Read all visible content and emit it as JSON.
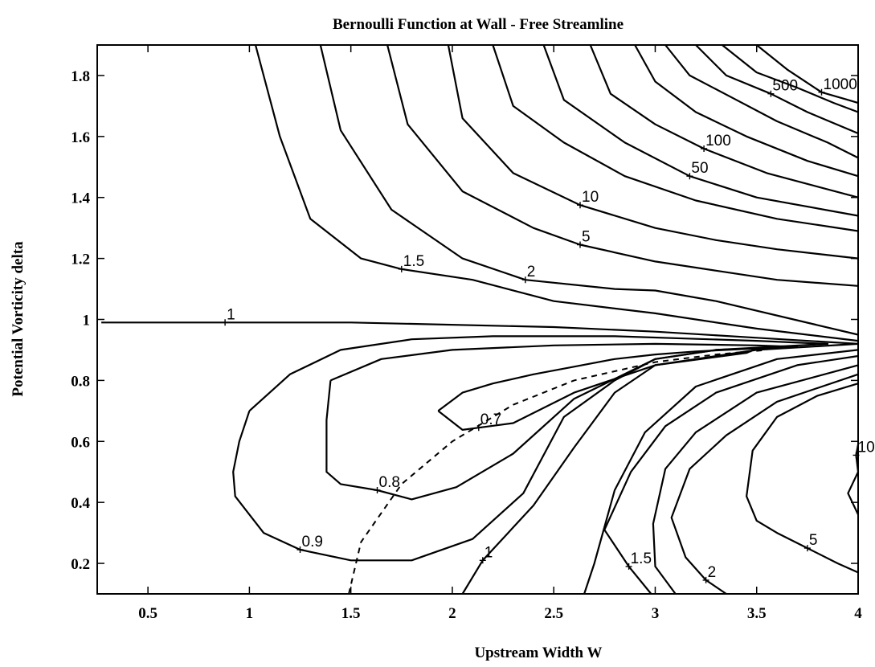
{
  "chart_data": {
    "type": "contour",
    "title": "Bernoulli Function at Wall - Free Streamline",
    "xlabel": "Upstream Width W",
    "ylabel": "Potential Vorticity delta",
    "xlim": [
      0.25,
      4.0
    ],
    "ylim": [
      0.1,
      1.9
    ],
    "xticks": [
      0.5,
      1,
      1.5,
      2,
      2.5,
      3,
      3.5,
      4
    ],
    "xtick_labels": [
      "0.5",
      "1",
      "1.5",
      "2",
      "2.5",
      "3",
      "3.5",
      "4"
    ],
    "yticks": [
      0.2,
      0.4,
      0.6,
      0.8,
      1.0,
      1.2,
      1.4,
      1.6,
      1.8
    ],
    "ytick_labels": [
      "0.2",
      "0.4",
      "0.6",
      "0.8",
      "1",
      "1.2",
      "1.4",
      "1.6",
      "1.8"
    ],
    "grid": false,
    "contour_labels": [
      {
        "text": "1",
        "x": 0.88,
        "y": 0.99
      },
      {
        "text": "1.5",
        "x": 1.75,
        "y": 1.165
      },
      {
        "text": "2",
        "x": 2.36,
        "y": 1.13
      },
      {
        "text": "5",
        "x": 2.63,
        "y": 1.245
      },
      {
        "text": "10",
        "x": 2.63,
        "y": 1.375
      },
      {
        "text": "50",
        "x": 3.17,
        "y": 1.47
      },
      {
        "text": "100",
        "x": 3.24,
        "y": 1.56
      },
      {
        "text": "500",
        "x": 3.57,
        "y": 1.74
      },
      {
        "text": "1000",
        "x": 3.82,
        "y": 1.745
      },
      {
        "text": "0.7",
        "x": 2.13,
        "y": 0.645
      },
      {
        "text": "0.8",
        "x": 1.63,
        "y": 0.44
      },
      {
        "text": "0.9",
        "x": 1.25,
        "y": 0.245
      },
      {
        "text": "1",
        "x": 2.15,
        "y": 0.21
      },
      {
        "text": "1.5",
        "x": 2.87,
        "y": 0.19
      },
      {
        "text": "2",
        "x": 3.25,
        "y": 0.145
      },
      {
        "text": "5",
        "x": 3.75,
        "y": 0.25
      },
      {
        "text": "10",
        "x": 3.99,
        "y": 0.555
      }
    ],
    "contours": [
      {
        "level": "1",
        "points": [
          [
            0.27,
            0.99
          ],
          [
            1.5,
            0.99
          ],
          [
            2.5,
            0.975
          ],
          [
            3.0,
            0.96
          ],
          [
            3.5,
            0.94
          ],
          [
            4.0,
            0.92
          ]
        ]
      },
      {
        "level": "1.5",
        "points": [
          [
            1.03,
            1.9
          ],
          [
            1.15,
            1.6
          ],
          [
            1.3,
            1.33
          ],
          [
            1.55,
            1.2
          ],
          [
            1.75,
            1.165
          ],
          [
            2.1,
            1.13
          ],
          [
            2.5,
            1.06
          ],
          [
            3.0,
            1.02
          ],
          [
            3.5,
            0.97
          ],
          [
            4.0,
            0.93
          ]
        ]
      },
      {
        "level": "2",
        "points": [
          [
            1.35,
            1.9
          ],
          [
            1.45,
            1.62
          ],
          [
            1.7,
            1.36
          ],
          [
            2.05,
            1.2
          ],
          [
            2.36,
            1.13
          ],
          [
            2.8,
            1.1
          ],
          [
            3.0,
            1.095
          ],
          [
            3.3,
            1.06
          ],
          [
            4.0,
            0.95
          ]
        ]
      },
      {
        "level": "5",
        "points": [
          [
            1.68,
            1.9
          ],
          [
            1.78,
            1.64
          ],
          [
            2.05,
            1.42
          ],
          [
            2.4,
            1.3
          ],
          [
            2.63,
            1.245
          ],
          [
            3.0,
            1.19
          ],
          [
            3.3,
            1.16
          ],
          [
            3.6,
            1.13
          ],
          [
            4.0,
            1.11
          ]
        ]
      },
      {
        "level": "10",
        "points": [
          [
            1.98,
            1.9
          ],
          [
            2.05,
            1.66
          ],
          [
            2.3,
            1.48
          ],
          [
            2.63,
            1.375
          ],
          [
            3.0,
            1.3
          ],
          [
            3.3,
            1.26
          ],
          [
            3.6,
            1.23
          ],
          [
            4.0,
            1.2
          ]
        ]
      },
      {
        "level": "",
        "points": [
          [
            2.2,
            1.9
          ],
          [
            2.3,
            1.7
          ],
          [
            2.55,
            1.58
          ],
          [
            2.85,
            1.47
          ],
          [
            3.2,
            1.39
          ],
          [
            3.6,
            1.33
          ],
          [
            4.0,
            1.29
          ]
        ]
      },
      {
        "level": "",
        "points": [
          [
            2.45,
            1.9
          ],
          [
            2.55,
            1.72
          ],
          [
            2.85,
            1.58
          ],
          [
            3.17,
            1.47
          ],
          [
            3.5,
            1.4
          ],
          [
            4.0,
            1.34
          ]
        ]
      },
      {
        "level": "50",
        "points": [
          [
            2.68,
            1.9
          ],
          [
            2.78,
            1.74
          ],
          [
            3.0,
            1.64
          ],
          [
            3.24,
            1.56
          ],
          [
            3.55,
            1.48
          ],
          [
            4.0,
            1.4
          ]
        ]
      },
      {
        "level": "100",
        "points": [
          [
            2.9,
            1.9
          ],
          [
            3.0,
            1.78
          ],
          [
            3.2,
            1.68
          ],
          [
            3.45,
            1.6
          ],
          [
            3.75,
            1.52
          ],
          [
            4.0,
            1.47
          ]
        ]
      },
      {
        "level": "",
        "points": [
          [
            3.05,
            1.9
          ],
          [
            3.17,
            1.8
          ],
          [
            3.4,
            1.72
          ],
          [
            3.6,
            1.65
          ],
          [
            3.85,
            1.58
          ],
          [
            4.0,
            1.53
          ]
        ]
      },
      {
        "level": "500",
        "points": [
          [
            3.2,
            1.9
          ],
          [
            3.35,
            1.8
          ],
          [
            3.57,
            1.74
          ],
          [
            3.75,
            1.68
          ],
          [
            4.0,
            1.61
          ]
        ]
      },
      {
        "level": "",
        "points": [
          [
            3.33,
            1.9
          ],
          [
            3.5,
            1.81
          ],
          [
            3.7,
            1.76
          ],
          [
            3.88,
            1.71
          ],
          [
            4.0,
            1.68
          ]
        ]
      },
      {
        "level": "1000",
        "points": [
          [
            3.5,
            1.9
          ],
          [
            3.65,
            1.82
          ],
          [
            3.82,
            1.745
          ],
          [
            3.95,
            1.72
          ],
          [
            4.0,
            1.71
          ]
        ]
      },
      {
        "level": "0.7",
        "points": [
          [
            1.93,
            0.7
          ],
          [
            2.05,
            0.76
          ],
          [
            2.2,
            0.79
          ],
          [
            2.4,
            0.82
          ],
          [
            2.6,
            0.845
          ],
          [
            2.8,
            0.87
          ],
          [
            3.0,
            0.885
          ],
          [
            3.2,
            0.895
          ],
          [
            3.5,
            0.905
          ],
          [
            3.45,
            0.89
          ],
          [
            3.0,
            0.85
          ],
          [
            2.6,
            0.76
          ],
          [
            2.3,
            0.66
          ],
          [
            2.13,
            0.645
          ],
          [
            2.05,
            0.638
          ],
          [
            1.93,
            0.7
          ]
        ]
      },
      {
        "level": "0.8",
        "points": [
          [
            1.4,
            0.8
          ],
          [
            1.65,
            0.87
          ],
          [
            2.0,
            0.9
          ],
          [
            2.5,
            0.915
          ],
          [
            3.0,
            0.92
          ],
          [
            3.5,
            0.915
          ],
          [
            3.7,
            0.91
          ],
          [
            3.3,
            0.9
          ],
          [
            3.0,
            0.87
          ],
          [
            2.6,
            0.74
          ],
          [
            2.3,
            0.56
          ],
          [
            2.02,
            0.45
          ],
          [
            1.8,
            0.41
          ],
          [
            1.63,
            0.44
          ],
          [
            1.45,
            0.46
          ],
          [
            1.38,
            0.5
          ],
          [
            1.38,
            0.67
          ],
          [
            1.4,
            0.8
          ]
        ]
      },
      {
        "level": "0.9",
        "points": [
          [
            1.0,
            0.7
          ],
          [
            1.2,
            0.82
          ],
          [
            1.45,
            0.9
          ],
          [
            1.8,
            0.935
          ],
          [
            2.2,
            0.945
          ],
          [
            2.8,
            0.945
          ],
          [
            3.5,
            0.93
          ],
          [
            3.85,
            0.92
          ],
          [
            3.3,
            0.9
          ],
          [
            3.0,
            0.87
          ],
          [
            2.8,
            0.8
          ],
          [
            2.55,
            0.68
          ],
          [
            2.35,
            0.43
          ],
          [
            2.1,
            0.28
          ],
          [
            1.8,
            0.21
          ],
          [
            1.5,
            0.21
          ],
          [
            1.25,
            0.245
          ],
          [
            1.07,
            0.3
          ],
          [
            0.93,
            0.42
          ],
          [
            0.92,
            0.5
          ],
          [
            0.95,
            0.6
          ],
          [
            1.0,
            0.7
          ]
        ]
      },
      {
        "level": "1",
        "points": [
          [
            2.05,
            0.1
          ],
          [
            2.15,
            0.21
          ],
          [
            2.4,
            0.39
          ],
          [
            2.6,
            0.58
          ],
          [
            2.8,
            0.76
          ],
          [
            3.0,
            0.85
          ],
          [
            3.5,
            0.9
          ],
          [
            4.0,
            0.92
          ]
        ]
      },
      {
        "level": "",
        "points": [
          [
            2.65,
            0.1
          ],
          [
            2.7,
            0.2
          ],
          [
            2.8,
            0.44
          ],
          [
            2.95,
            0.63
          ],
          [
            3.2,
            0.78
          ],
          [
            3.6,
            0.87
          ],
          [
            4.0,
            0.9
          ]
        ]
      },
      {
        "level": "1.5",
        "points": [
          [
            2.98,
            0.1
          ],
          [
            2.87,
            0.19
          ],
          [
            2.75,
            0.31
          ],
          [
            2.88,
            0.5
          ],
          [
            3.05,
            0.65
          ],
          [
            3.3,
            0.76
          ],
          [
            3.7,
            0.85
          ],
          [
            4.0,
            0.88
          ]
        ]
      },
      {
        "level": "",
        "points": [
          [
            3.1,
            0.1
          ],
          [
            3.0,
            0.19
          ],
          [
            2.99,
            0.33
          ],
          [
            3.05,
            0.51
          ],
          [
            3.2,
            0.63
          ],
          [
            3.5,
            0.76
          ],
          [
            4.0,
            0.85
          ]
        ]
      },
      {
        "level": "2",
        "points": [
          [
            3.35,
            0.1
          ],
          [
            3.25,
            0.145
          ],
          [
            3.15,
            0.22
          ],
          [
            3.08,
            0.35
          ],
          [
            3.17,
            0.51
          ],
          [
            3.35,
            0.62
          ],
          [
            3.6,
            0.73
          ],
          [
            4.0,
            0.82
          ]
        ]
      },
      {
        "level": "5",
        "points": [
          [
            4.0,
            0.17
          ],
          [
            3.9,
            0.2
          ],
          [
            3.75,
            0.25
          ],
          [
            3.6,
            0.3
          ],
          [
            3.5,
            0.34
          ],
          [
            3.45,
            0.42
          ],
          [
            3.48,
            0.57
          ],
          [
            3.6,
            0.68
          ],
          [
            3.8,
            0.75
          ],
          [
            4.0,
            0.79
          ]
        ]
      },
      {
        "level": "10",
        "points": [
          [
            4.0,
            0.36
          ],
          [
            3.95,
            0.43
          ],
          [
            4.0,
            0.5
          ],
          [
            3.99,
            0.555
          ],
          [
            4.0,
            0.59
          ]
        ]
      }
    ],
    "dashed_curve": [
      [
        1.49,
        0.1
      ],
      [
        1.55,
        0.27
      ],
      [
        1.75,
        0.46
      ],
      [
        2.0,
        0.6
      ],
      [
        2.3,
        0.72
      ],
      [
        2.6,
        0.8
      ],
      [
        3.0,
        0.86
      ],
      [
        3.3,
        0.885
      ],
      [
        3.55,
        0.9
      ]
    ]
  }
}
